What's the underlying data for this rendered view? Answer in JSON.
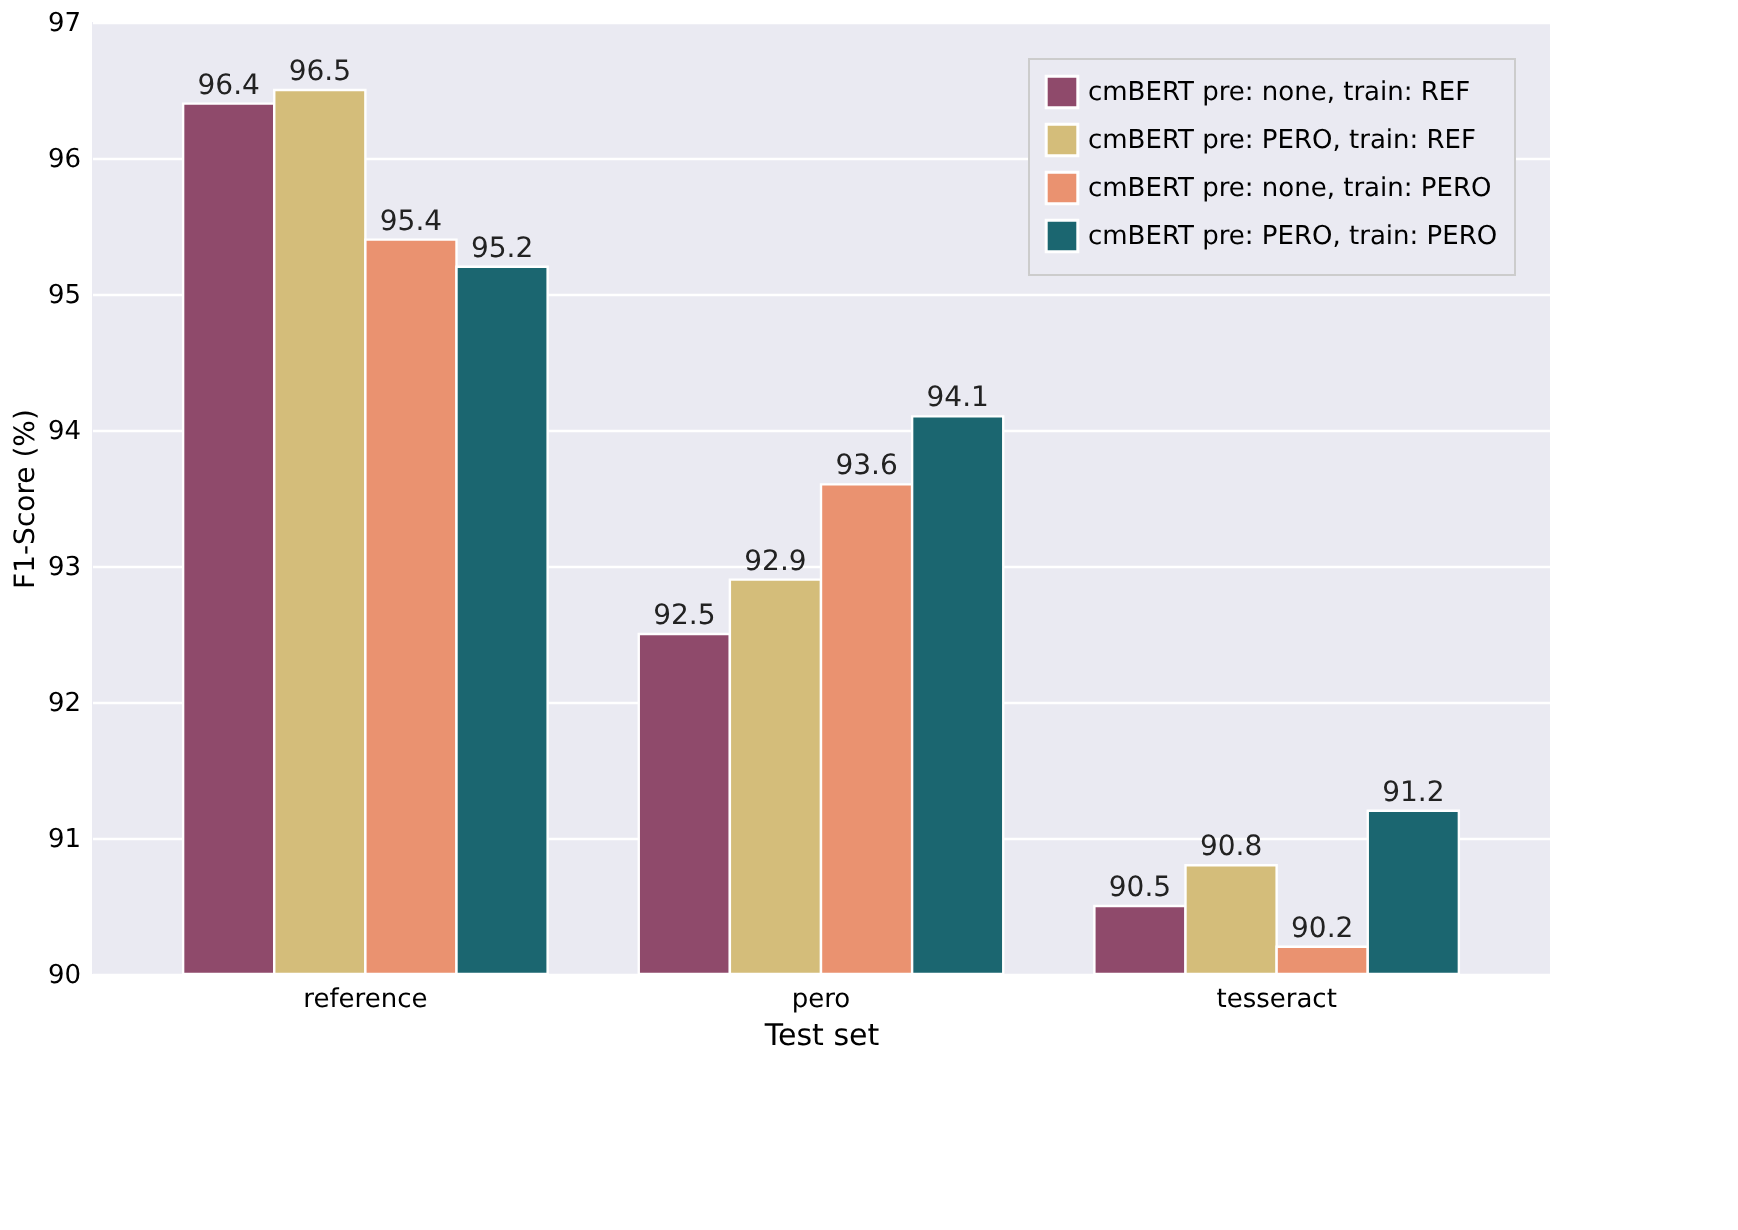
{
  "chart_data": {
    "type": "bar",
    "xlabel": "Test set",
    "ylabel": "F1-Score (%)",
    "categories": [
      "reference",
      "pero",
      "tesseract"
    ],
    "series": [
      {
        "name": "cmBERT pre: none, train: REF",
        "color": "#8f4a6b",
        "values": [
          96.4,
          92.5,
          90.5
        ]
      },
      {
        "name": "cmBERT pre: PERO, train: REF",
        "color": "#d4bd7a",
        "values": [
          96.5,
          92.9,
          90.8
        ]
      },
      {
        "name": "cmBERT pre: none, train: PERO",
        "color": "#ea9270",
        "values": [
          95.4,
          93.6,
          90.2
        ]
      },
      {
        "name": "cmBERT pre: PERO, train: PERO",
        "color": "#1b6670",
        "values": [
          95.2,
          94.1,
          91.2
        ]
      }
    ],
    "ylim": [
      90,
      97
    ],
    "yticks": [
      90,
      91,
      92,
      93,
      94,
      95,
      96,
      97
    ],
    "grid": "y",
    "legend": "top right",
    "data_labels": true
  }
}
